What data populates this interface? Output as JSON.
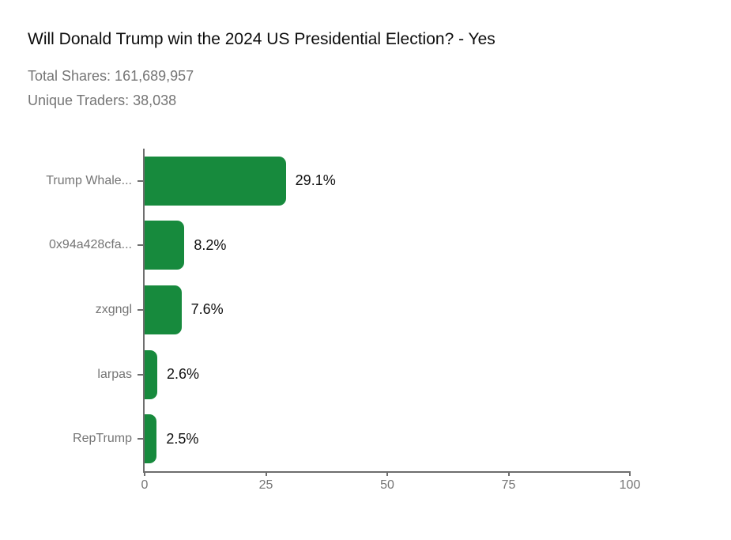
{
  "title": "Will Donald Trump win the 2024 US Presidential Election? - Yes",
  "stats": {
    "total_shares": "Total Shares: 161,689,957",
    "unique_traders": "Unique Traders: 38,038"
  },
  "colors": {
    "bar": "#178a3d",
    "axis": "#6e6e6e",
    "muted_text": "#757575",
    "title_text": "#0d0d0d",
    "value_text": "#101010",
    "background": "#ffffff"
  },
  "chart_data": {
    "type": "bar",
    "orientation": "horizontal",
    "title": "Will Donald Trump win the 2024 US Presidential Election? - Yes",
    "subtitle_lines": [
      "Total Shares: 161,689,957",
      "Unique Traders: 38,038"
    ],
    "categories": [
      "Trump Whale...",
      "0x94a428cfa...",
      "zxgngl",
      "larpas",
      "RepTrump"
    ],
    "values": [
      29.1,
      8.2,
      7.6,
      2.6,
      2.5
    ],
    "value_labels": [
      "29.1%",
      "8.2%",
      "7.6%",
      "2.6%",
      "2.5%"
    ],
    "xlabel": "",
    "ylabel": "",
    "xlim": [
      0,
      100
    ],
    "x_ticks": [
      0,
      25,
      50,
      75,
      100
    ],
    "grid": false,
    "legend": false,
    "bar_color": "#178a3d"
  }
}
